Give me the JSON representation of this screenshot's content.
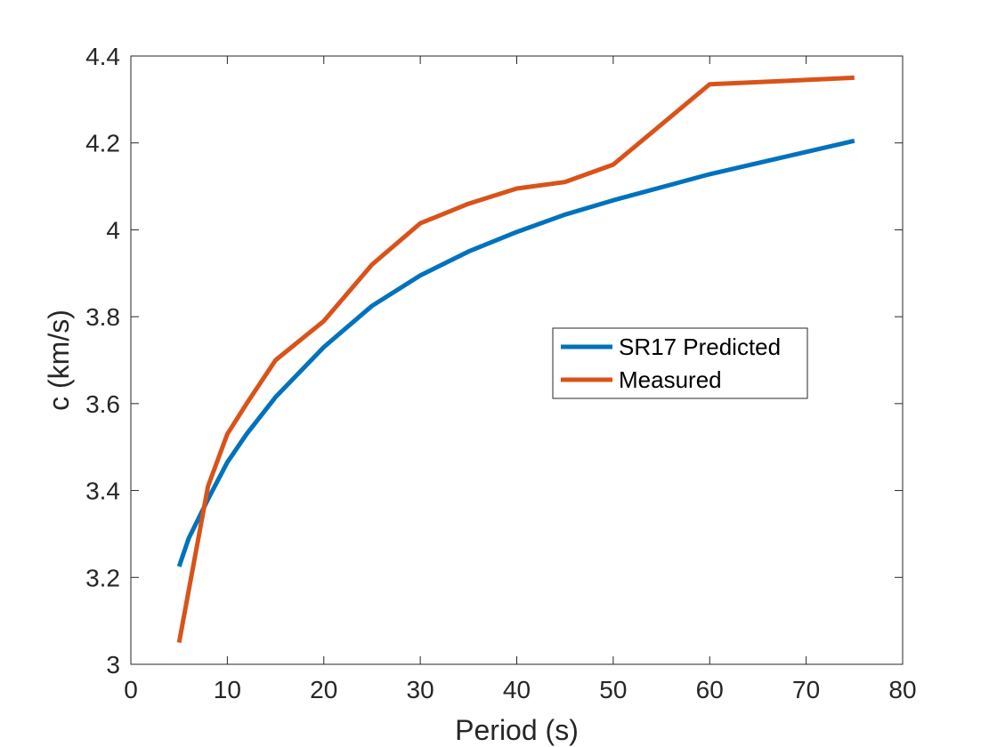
{
  "chart_data": {
    "type": "line",
    "xlabel": "Period (s)",
    "ylabel": "c (km/s)",
    "xlim": [
      0,
      80
    ],
    "ylim": [
      3,
      4.4
    ],
    "xticks": [
      "0",
      "10",
      "20",
      "30",
      "40",
      "50",
      "60",
      "70",
      "80"
    ],
    "yticks": [
      "3",
      "3.2",
      "3.4",
      "3.6",
      "3.8",
      "4",
      "4.2",
      "4.4"
    ],
    "grid": false,
    "legend_position": "right",
    "series": [
      {
        "name": "SR17 Predicted",
        "color": "#0072BD",
        "x": [
          5,
          6,
          8,
          10,
          12,
          15,
          20,
          25,
          30,
          35,
          40,
          45,
          50,
          60,
          75
        ],
        "y": [
          3.225,
          3.29,
          3.38,
          3.465,
          3.53,
          3.615,
          3.73,
          3.825,
          3.895,
          3.95,
          3.995,
          4.035,
          4.068,
          4.128,
          4.205
        ]
      },
      {
        "name": "Measured",
        "color": "#D95319",
        "x": [
          5,
          8,
          10,
          12,
          15,
          20,
          25,
          30,
          35,
          40,
          45,
          50,
          60,
          75
        ],
        "y": [
          3.05,
          3.41,
          3.53,
          3.6,
          3.7,
          3.79,
          3.92,
          4.015,
          4.06,
          4.095,
          4.11,
          4.15,
          4.335,
          4.35
        ]
      }
    ]
  }
}
